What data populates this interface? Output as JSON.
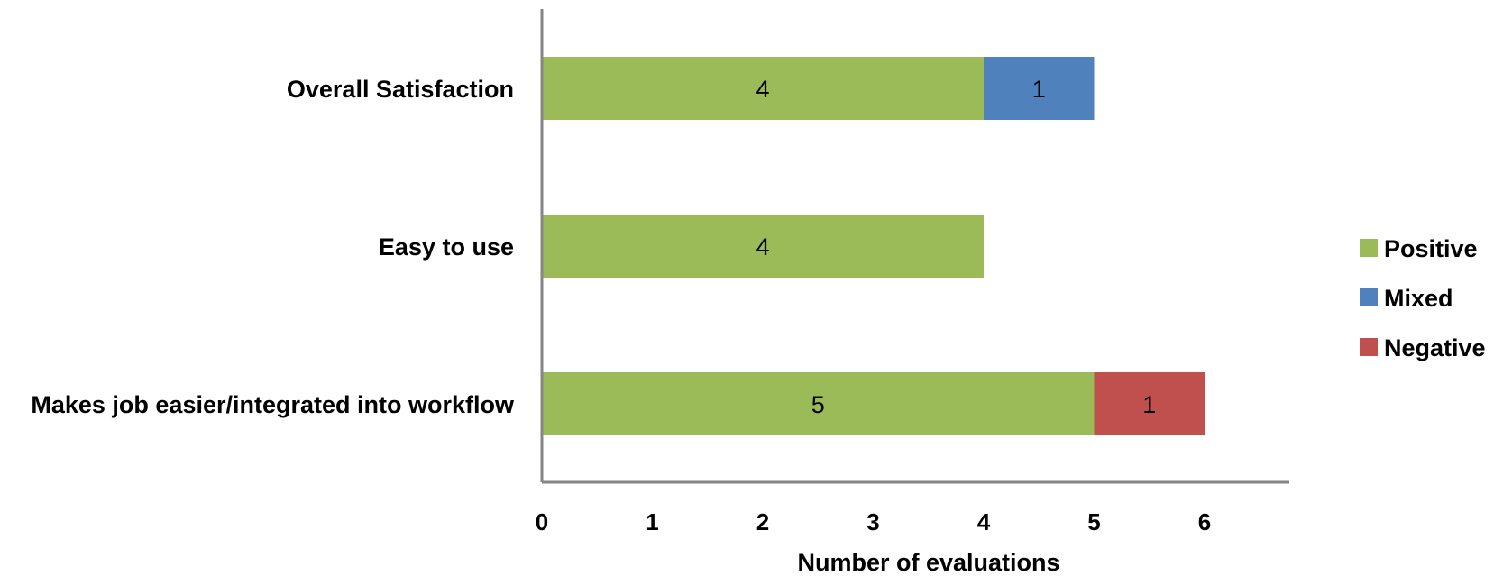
{
  "chart_data": {
    "type": "bar",
    "orientation": "horizontal",
    "stacked": true,
    "categories": [
      "Overall Satisfaction",
      "Easy to use",
      "Makes job easier/integrated into workflow"
    ],
    "series": [
      {
        "name": "Positive",
        "color": "#9BBB59",
        "values": [
          4,
          4,
          5
        ]
      },
      {
        "name": "Mixed",
        "color": "#4F81BD",
        "values": [
          1,
          0,
          0
        ]
      },
      {
        "name": "Negative",
        "color": "#C0504D",
        "values": [
          0,
          0,
          1
        ]
      }
    ],
    "xlabel": "Number of evaluations",
    "xlim": [
      0,
      6.8
    ],
    "xticks": [
      0,
      1,
      2,
      3,
      4,
      5,
      6
    ],
    "grid": false,
    "legend_position": "right"
  }
}
